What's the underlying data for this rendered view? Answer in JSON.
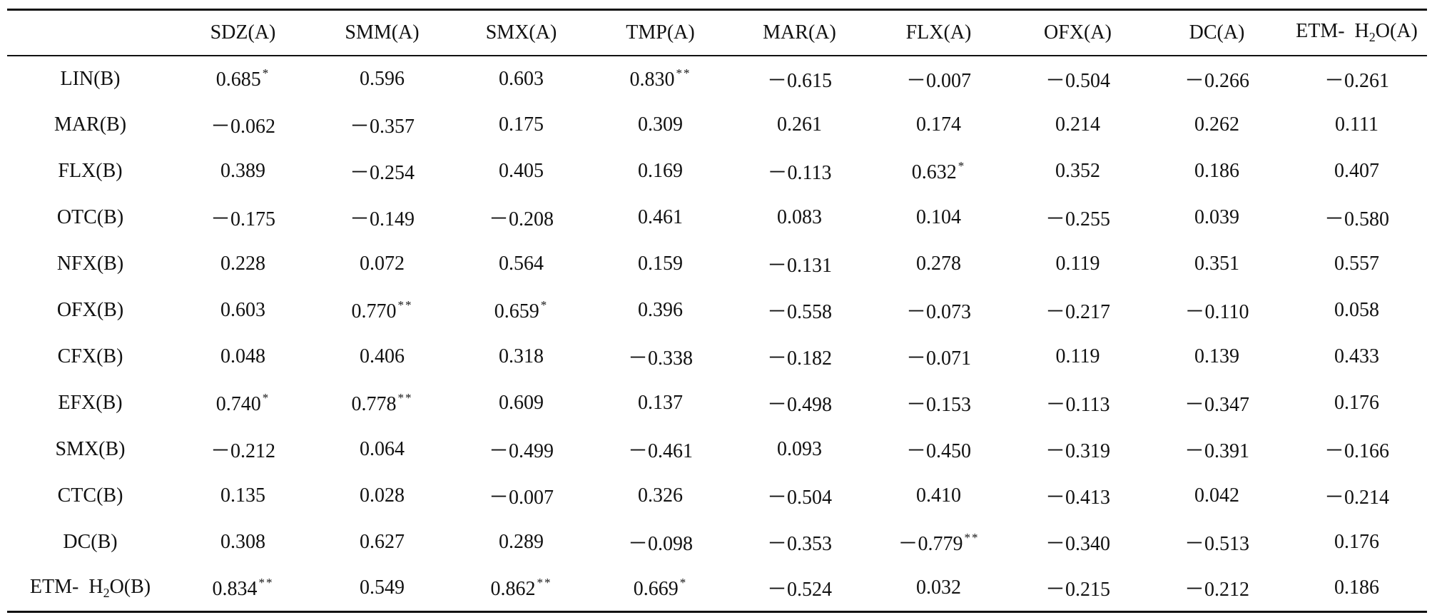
{
  "columns": [
    {
      "text": "SDZ(A)"
    },
    {
      "text": "SMM(A)"
    },
    {
      "text": "SMX(A)"
    },
    {
      "text": "TMP(A)"
    },
    {
      "text": "MAR(A)"
    },
    {
      "text": "FLX(A)"
    },
    {
      "text": "OFX(A)"
    },
    {
      "text": "DC(A)"
    },
    {
      "prefix": "ETM-",
      "chem_a": "H",
      "chem_sub": "2",
      "chem_b": "O(A)"
    }
  ],
  "rows": [
    {
      "label": {
        "text": "LIN(B)"
      },
      "cells": [
        {
          "v": "0.685",
          "s": "*"
        },
        {
          "v": "0.596",
          "s": ""
        },
        {
          "v": "0.603",
          "s": ""
        },
        {
          "v": "0.830",
          "s": "**"
        },
        {
          "v": "－0.615",
          "s": ""
        },
        {
          "v": "－0.007",
          "s": ""
        },
        {
          "v": "－0.504",
          "s": ""
        },
        {
          "v": "－0.266",
          "s": ""
        },
        {
          "v": "－0.261",
          "s": ""
        }
      ]
    },
    {
      "label": {
        "text": "MAR(B)"
      },
      "cells": [
        {
          "v": "－0.062",
          "s": ""
        },
        {
          "v": "－0.357",
          "s": ""
        },
        {
          "v": "0.175",
          "s": ""
        },
        {
          "v": "0.309",
          "s": ""
        },
        {
          "v": "0.261",
          "s": ""
        },
        {
          "v": "0.174",
          "s": ""
        },
        {
          "v": "0.214",
          "s": ""
        },
        {
          "v": "0.262",
          "s": ""
        },
        {
          "v": "0.111",
          "s": ""
        }
      ]
    },
    {
      "label": {
        "text": "FLX(B)"
      },
      "cells": [
        {
          "v": "0.389",
          "s": ""
        },
        {
          "v": "－0.254",
          "s": ""
        },
        {
          "v": "0.405",
          "s": ""
        },
        {
          "v": "0.169",
          "s": ""
        },
        {
          "v": "－0.113",
          "s": ""
        },
        {
          "v": "0.632",
          "s": "*"
        },
        {
          "v": "0.352",
          "s": ""
        },
        {
          "v": "0.186",
          "s": ""
        },
        {
          "v": "0.407",
          "s": ""
        }
      ]
    },
    {
      "label": {
        "text": "OTC(B)"
      },
      "cells": [
        {
          "v": "－0.175",
          "s": ""
        },
        {
          "v": "－0.149",
          "s": ""
        },
        {
          "v": "－0.208",
          "s": ""
        },
        {
          "v": "0.461",
          "s": ""
        },
        {
          "v": "0.083",
          "s": ""
        },
        {
          "v": "0.104",
          "s": ""
        },
        {
          "v": "－0.255",
          "s": ""
        },
        {
          "v": "0.039",
          "s": ""
        },
        {
          "v": "－0.580",
          "s": ""
        }
      ]
    },
    {
      "label": {
        "text": "NFX(B)"
      },
      "cells": [
        {
          "v": "0.228",
          "s": ""
        },
        {
          "v": "0.072",
          "s": ""
        },
        {
          "v": "0.564",
          "s": ""
        },
        {
          "v": "0.159",
          "s": ""
        },
        {
          "v": "－0.131",
          "s": ""
        },
        {
          "v": "0.278",
          "s": ""
        },
        {
          "v": "0.119",
          "s": ""
        },
        {
          "v": "0.351",
          "s": ""
        },
        {
          "v": "0.557",
          "s": ""
        }
      ]
    },
    {
      "label": {
        "text": "OFX(B)"
      },
      "cells": [
        {
          "v": "0.603",
          "s": ""
        },
        {
          "v": "0.770",
          "s": "**"
        },
        {
          "v": "0.659",
          "s": "*"
        },
        {
          "v": "0.396",
          "s": ""
        },
        {
          "v": "－0.558",
          "s": ""
        },
        {
          "v": "－0.073",
          "s": ""
        },
        {
          "v": "－0.217",
          "s": ""
        },
        {
          "v": "－0.110",
          "s": ""
        },
        {
          "v": "0.058",
          "s": ""
        }
      ]
    },
    {
      "label": {
        "text": "CFX(B)"
      },
      "cells": [
        {
          "v": "0.048",
          "s": ""
        },
        {
          "v": "0.406",
          "s": ""
        },
        {
          "v": "0.318",
          "s": ""
        },
        {
          "v": "－0.338",
          "s": ""
        },
        {
          "v": "－0.182",
          "s": ""
        },
        {
          "v": "－0.071",
          "s": ""
        },
        {
          "v": "0.119",
          "s": ""
        },
        {
          "v": "0.139",
          "s": ""
        },
        {
          "v": "0.433",
          "s": ""
        }
      ]
    },
    {
      "label": {
        "text": "EFX(B)"
      },
      "cells": [
        {
          "v": "0.740",
          "s": "*"
        },
        {
          "v": "0.778",
          "s": "**"
        },
        {
          "v": "0.609",
          "s": ""
        },
        {
          "v": "0.137",
          "s": ""
        },
        {
          "v": "－0.498",
          "s": ""
        },
        {
          "v": "－0.153",
          "s": ""
        },
        {
          "v": "－0.113",
          "s": ""
        },
        {
          "v": "－0.347",
          "s": ""
        },
        {
          "v": "0.176",
          "s": ""
        }
      ]
    },
    {
      "label": {
        "text": "SMX(B)"
      },
      "cells": [
        {
          "v": "－0.212",
          "s": ""
        },
        {
          "v": "0.064",
          "s": ""
        },
        {
          "v": "－0.499",
          "s": ""
        },
        {
          "v": "－0.461",
          "s": ""
        },
        {
          "v": "0.093",
          "s": ""
        },
        {
          "v": "－0.450",
          "s": ""
        },
        {
          "v": "－0.319",
          "s": ""
        },
        {
          "v": "－0.391",
          "s": ""
        },
        {
          "v": "－0.166",
          "s": ""
        }
      ]
    },
    {
      "label": {
        "text": "CTC(B)"
      },
      "cells": [
        {
          "v": "0.135",
          "s": ""
        },
        {
          "v": "0.028",
          "s": ""
        },
        {
          "v": "－0.007",
          "s": ""
        },
        {
          "v": "0.326",
          "s": ""
        },
        {
          "v": "－0.504",
          "s": ""
        },
        {
          "v": "0.410",
          "s": ""
        },
        {
          "v": "－0.413",
          "s": ""
        },
        {
          "v": "0.042",
          "s": ""
        },
        {
          "v": "－0.214",
          "s": ""
        }
      ]
    },
    {
      "label": {
        "text": "DC(B)"
      },
      "cells": [
        {
          "v": "0.308",
          "s": ""
        },
        {
          "v": "0.627",
          "s": ""
        },
        {
          "v": "0.289",
          "s": ""
        },
        {
          "v": "－0.098",
          "s": ""
        },
        {
          "v": "－0.353",
          "s": ""
        },
        {
          "v": "－0.779",
          "s": "**"
        },
        {
          "v": "－0.340",
          "s": ""
        },
        {
          "v": "－0.513",
          "s": ""
        },
        {
          "v": "0.176",
          "s": ""
        }
      ]
    },
    {
      "label": {
        "prefix": "ETM-",
        "chem_a": "H",
        "chem_sub": "2",
        "chem_b": "O(B)"
      },
      "cells": [
        {
          "v": "0.834",
          "s": "**"
        },
        {
          "v": "0.549",
          "s": ""
        },
        {
          "v": "0.862",
          "s": "**"
        },
        {
          "v": "0.669",
          "s": "*"
        },
        {
          "v": "－0.524",
          "s": ""
        },
        {
          "v": "0.032",
          "s": ""
        },
        {
          "v": "－0.215",
          "s": ""
        },
        {
          "v": "－0.212",
          "s": ""
        },
        {
          "v": "0.186",
          "s": ""
        }
      ]
    }
  ]
}
